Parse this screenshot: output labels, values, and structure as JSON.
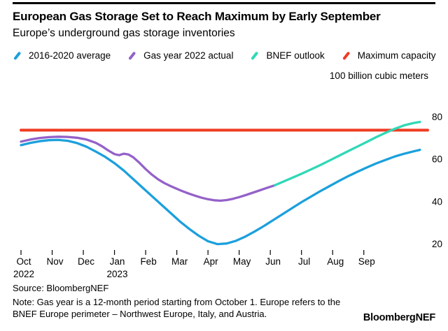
{
  "header": {
    "title": "European Gas Storage Set to Reach Maximum by Early September",
    "subtitle": "Europe’s underground gas storage inventories"
  },
  "chart": {
    "unit_label": "100 billion cubic meters"
  },
  "chart_data": {
    "type": "line",
    "title": "European Gas Storage Set to Reach Maximum by Early September",
    "subtitle": "Europe’s underground gas storage inventories",
    "unit_label": "100 billion cubic meters",
    "x_unit": "months from Oct 1, 2022",
    "xlim": [
      0,
      13.05
    ],
    "ylim": [
      15,
      84
    ],
    "grid": false,
    "y_tick_side": "right",
    "y_ticks": [
      20,
      40,
      60,
      80
    ],
    "x_ticks": [
      {
        "x": 0,
        "label": "Oct",
        "sublabel": "2022"
      },
      {
        "x": 1,
        "label": "Nov"
      },
      {
        "x": 2,
        "label": "Dec"
      },
      {
        "x": 3,
        "label": "Jan",
        "sublabel": "2023"
      },
      {
        "x": 4,
        "label": "Feb"
      },
      {
        "x": 5,
        "label": "Mar"
      },
      {
        "x": 6,
        "label": "Apr"
      },
      {
        "x": 7,
        "label": "May"
      },
      {
        "x": 8,
        "label": "Jun"
      },
      {
        "x": 9,
        "label": "Jul"
      },
      {
        "x": 10,
        "label": "Aug"
      },
      {
        "x": 11,
        "label": "Sep"
      }
    ],
    "series": [
      {
        "name": "2016-2020 average",
        "color": "#1BA0DC",
        "points": [
          [
            0,
            66.5
          ],
          [
            0.3,
            67.6
          ],
          [
            0.6,
            68.4
          ],
          [
            0.9,
            68.9
          ],
          [
            1.2,
            69.0
          ],
          [
            1.5,
            68.6
          ],
          [
            1.8,
            67.5
          ],
          [
            2.1,
            65.8
          ],
          [
            2.4,
            63.5
          ],
          [
            2.7,
            61.0
          ],
          [
            3.0,
            58.0
          ],
          [
            3.3,
            54.5
          ],
          [
            3.6,
            50.5
          ],
          [
            3.9,
            46.5
          ],
          [
            4.2,
            42.5
          ],
          [
            4.5,
            38.5
          ],
          [
            4.8,
            34.5
          ],
          [
            5.1,
            30.5
          ],
          [
            5.4,
            27.0
          ],
          [
            5.7,
            23.8
          ],
          [
            6.0,
            21.2
          ],
          [
            6.3,
            19.8
          ],
          [
            6.6,
            20.1
          ],
          [
            6.9,
            21.4
          ],
          [
            7.2,
            23.4
          ],
          [
            7.5,
            25.8
          ],
          [
            7.8,
            28.4
          ],
          [
            8.1,
            31.2
          ],
          [
            8.4,
            34.0
          ],
          [
            8.7,
            36.8
          ],
          [
            9.0,
            39.6
          ],
          [
            9.3,
            42.2
          ],
          [
            9.6,
            44.8
          ],
          [
            9.9,
            47.2
          ],
          [
            10.2,
            49.6
          ],
          [
            10.5,
            51.9
          ],
          [
            10.8,
            54.0
          ],
          [
            11.1,
            56.0
          ],
          [
            11.4,
            57.9
          ],
          [
            11.7,
            59.6
          ],
          [
            12.0,
            61.2
          ],
          [
            12.3,
            62.5
          ],
          [
            12.6,
            63.6
          ],
          [
            12.8,
            64.3
          ]
        ]
      },
      {
        "name": "Gas year 2022 actual",
        "color": "#9461C9",
        "points": [
          [
            0,
            68.2
          ],
          [
            0.3,
            69.2
          ],
          [
            0.6,
            69.9
          ],
          [
            0.9,
            70.3
          ],
          [
            1.2,
            70.5
          ],
          [
            1.5,
            70.4
          ],
          [
            1.8,
            70.0
          ],
          [
            2.1,
            69.2
          ],
          [
            2.4,
            67.6
          ],
          [
            2.6,
            66.0
          ],
          [
            2.8,
            64.0
          ],
          [
            3.0,
            62.3
          ],
          [
            3.15,
            61.8
          ],
          [
            3.3,
            62.5
          ],
          [
            3.45,
            62.1
          ],
          [
            3.6,
            60.8
          ],
          [
            3.8,
            58.2
          ],
          [
            4.0,
            55.2
          ],
          [
            4.2,
            52.6
          ],
          [
            4.4,
            50.4
          ],
          [
            4.6,
            48.6
          ],
          [
            4.8,
            47.2
          ],
          [
            5.0,
            45.9
          ],
          [
            5.2,
            44.7
          ],
          [
            5.4,
            43.6
          ],
          [
            5.6,
            42.6
          ],
          [
            5.8,
            41.7
          ],
          [
            6.0,
            41.0
          ],
          [
            6.2,
            40.5
          ],
          [
            6.4,
            40.3
          ],
          [
            6.6,
            40.6
          ],
          [
            6.8,
            41.2
          ],
          [
            7.0,
            42.0
          ],
          [
            7.2,
            42.9
          ],
          [
            7.4,
            43.9
          ],
          [
            7.6,
            44.9
          ],
          [
            7.8,
            45.9
          ],
          [
            8.0,
            46.9
          ],
          [
            8.15,
            47.6
          ]
        ]
      },
      {
        "name": "BNEF outlook",
        "color": "#2FD8B6",
        "points": [
          [
            8.15,
            47.6
          ],
          [
            8.4,
            49.2
          ],
          [
            8.7,
            51.1
          ],
          [
            9.0,
            53.0
          ],
          [
            9.3,
            55.0
          ],
          [
            9.6,
            57.1
          ],
          [
            9.9,
            59.3
          ],
          [
            10.2,
            61.5
          ],
          [
            10.5,
            63.7
          ],
          [
            10.8,
            65.9
          ],
          [
            11.1,
            68.1
          ],
          [
            11.4,
            70.3
          ],
          [
            11.7,
            72.4
          ],
          [
            12.0,
            74.3
          ],
          [
            12.3,
            75.9
          ],
          [
            12.6,
            77.0
          ],
          [
            12.8,
            77.5
          ]
        ]
      },
      {
        "name": "Maximum capacity",
        "color": "#F03B22",
        "role": "threshold",
        "points": [
          [
            0,
            73.6
          ],
          [
            13.05,
            73.6
          ]
        ]
      }
    ]
  },
  "footer": {
    "source": "Source: BloombergNEF",
    "note": "Note: Gas year is a 12-month period starting from October 1. Europe refers to the BNEF Europe perimeter – Northwest Europe, Italy, and Austria.",
    "brand": "BloombergNEF"
  }
}
